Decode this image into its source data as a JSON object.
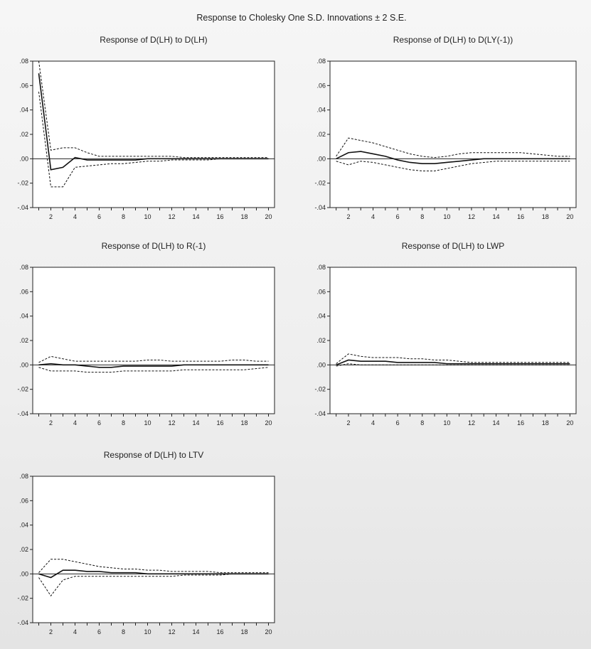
{
  "figure_title": "Response to Cholesky One S.D. Innovations ± 2 S.E.",
  "chart_data": [
    {
      "type": "line",
      "title": "Response of D(LH) to D(LH)",
      "x": [
        1,
        2,
        3,
        4,
        5,
        6,
        7,
        8,
        9,
        10,
        11,
        12,
        13,
        14,
        15,
        16,
        17,
        18,
        19,
        20
      ],
      "xticks": [
        2,
        4,
        6,
        8,
        10,
        12,
        14,
        16,
        18,
        20
      ],
      "ylim": [
        -0.04,
        0.08
      ],
      "yticks": [
        -0.04,
        -0.02,
        0.0,
        0.02,
        0.04,
        0.06,
        0.08
      ],
      "ytick_labels": [
        "-.04",
        "-.02",
        ".00",
        ".02",
        ".04",
        ".06",
        ".08"
      ],
      "series": [
        {
          "role": "response",
          "values": [
            0.07,
            -0.009,
            -0.007,
            0.001,
            -0.001,
            -0.001,
            -0.001,
            -0.001,
            -0.001,
            0,
            0,
            0,
            0,
            0,
            0,
            0,
            0,
            0,
            0,
            0
          ]
        },
        {
          "role": "upper",
          "values": [
            0.08,
            0.007,
            0.009,
            0.009,
            0.005,
            0.002,
            0.002,
            0.002,
            0.002,
            0.002,
            0.002,
            0.002,
            0.001,
            0.001,
            0.001,
            0.001,
            0.001,
            0.001,
            0.001,
            0.001
          ]
        },
        {
          "role": "lower",
          "values": [
            0.055,
            -0.023,
            -0.023,
            -0.007,
            -0.006,
            -0.005,
            -0.004,
            -0.004,
            -0.003,
            -0.002,
            -0.002,
            -0.001,
            -0.001,
            -0.001,
            -0.001,
            0,
            0,
            0,
            0,
            0
          ]
        }
      ]
    },
    {
      "type": "line",
      "title": "Response of D(LH) to D(LY(-1))",
      "x": [
        1,
        2,
        3,
        4,
        5,
        6,
        7,
        8,
        9,
        10,
        11,
        12,
        13,
        14,
        15,
        16,
        17,
        18,
        19,
        20
      ],
      "xticks": [
        2,
        4,
        6,
        8,
        10,
        12,
        14,
        16,
        18,
        20
      ],
      "ylim": [
        -0.04,
        0.08
      ],
      "yticks": [
        -0.04,
        -0.02,
        0.0,
        0.02,
        0.04,
        0.06,
        0.08
      ],
      "ytick_labels": [
        "-.04",
        "-.02",
        ".00",
        ".02",
        ".04",
        ".06",
        ".08"
      ],
      "series": [
        {
          "role": "response",
          "values": [
            0,
            0.005,
            0.006,
            0.004,
            0.002,
            -0.001,
            -0.003,
            -0.004,
            -0.004,
            -0.003,
            -0.002,
            -0.001,
            0,
            0,
            0,
            0,
            0,
            0,
            0,
            0
          ]
        },
        {
          "role": "upper",
          "values": [
            0.002,
            0.017,
            0.015,
            0.013,
            0.01,
            0.007,
            0.004,
            0.002,
            0.001,
            0.002,
            0.004,
            0.005,
            0.005,
            0.005,
            0.005,
            0.005,
            0.004,
            0.003,
            0.002,
            0.002
          ]
        },
        {
          "role": "lower",
          "values": [
            -0.002,
            -0.005,
            -0.002,
            -0.003,
            -0.005,
            -0.007,
            -0.009,
            -0.01,
            -0.01,
            -0.008,
            -0.006,
            -0.004,
            -0.003,
            -0.002,
            -0.002,
            -0.002,
            -0.002,
            -0.002,
            -0.002,
            -0.002
          ]
        }
      ]
    },
    {
      "type": "line",
      "title": "Response of D(LH) to R(-1)",
      "x": [
        1,
        2,
        3,
        4,
        5,
        6,
        7,
        8,
        9,
        10,
        11,
        12,
        13,
        14,
        15,
        16,
        17,
        18,
        19,
        20
      ],
      "xticks": [
        2,
        4,
        6,
        8,
        10,
        12,
        14,
        16,
        18,
        20
      ],
      "ylim": [
        -0.04,
        0.08
      ],
      "yticks": [
        -0.04,
        -0.02,
        0.0,
        0.02,
        0.04,
        0.06,
        0.08
      ],
      "ytick_labels": [
        "-.04",
        "-.02",
        ".00",
        ".02",
        ".04",
        ".06",
        ".08"
      ],
      "series": [
        {
          "role": "response",
          "values": [
            0,
            0.001,
            0,
            0,
            -0.001,
            -0.002,
            -0.002,
            -0.001,
            -0.001,
            -0.001,
            -0.001,
            -0.001,
            0,
            0,
            0,
            0,
            0,
            0,
            0,
            0
          ]
        },
        {
          "role": "upper",
          "values": [
            0.002,
            0.007,
            0.005,
            0.003,
            0.003,
            0.003,
            0.003,
            0.003,
            0.003,
            0.004,
            0.004,
            0.003,
            0.003,
            0.003,
            0.003,
            0.003,
            0.004,
            0.004,
            0.003,
            0.003
          ]
        },
        {
          "role": "lower",
          "values": [
            -0.002,
            -0.005,
            -0.005,
            -0.005,
            -0.006,
            -0.006,
            -0.006,
            -0.005,
            -0.005,
            -0.005,
            -0.005,
            -0.005,
            -0.004,
            -0.004,
            -0.004,
            -0.004,
            -0.004,
            -0.004,
            -0.003,
            -0.002
          ]
        }
      ]
    },
    {
      "type": "line",
      "title": "Response of D(LH) to LWP",
      "x": [
        1,
        2,
        3,
        4,
        5,
        6,
        7,
        8,
        9,
        10,
        11,
        12,
        13,
        14,
        15,
        16,
        17,
        18,
        19,
        20
      ],
      "xticks": [
        2,
        4,
        6,
        8,
        10,
        12,
        14,
        16,
        18,
        20
      ],
      "ylim": [
        -0.04,
        0.08
      ],
      "yticks": [
        -0.04,
        -0.02,
        0.0,
        0.02,
        0.04,
        0.06,
        0.08
      ],
      "ytick_labels": [
        "-.04",
        "-.02",
        ".00",
        ".02",
        ".04",
        ".06",
        ".08"
      ],
      "series": [
        {
          "role": "response",
          "values": [
            0,
            0.004,
            0.003,
            0.003,
            0.003,
            0.002,
            0.002,
            0.002,
            0.002,
            0.001,
            0.001,
            0.001,
            0.001,
            0.001,
            0.001,
            0.001,
            0.001,
            0.001,
            0.001,
            0.001
          ]
        },
        {
          "role": "upper",
          "values": [
            0.001,
            0.009,
            0.007,
            0.006,
            0.006,
            0.006,
            0.005,
            0.005,
            0.004,
            0.004,
            0.003,
            0.002,
            0.002,
            0.002,
            0.002,
            0.002,
            0.002,
            0.002,
            0.002,
            0.002
          ]
        },
        {
          "role": "lower",
          "values": [
            -0.001,
            0.001,
            0,
            0,
            0,
            0,
            0,
            0,
            0,
            0,
            0,
            0,
            0,
            0,
            0,
            0,
            0,
            0,
            0,
            0
          ]
        }
      ]
    },
    {
      "type": "line",
      "title": "Response of D(LH) to LTV",
      "x": [
        1,
        2,
        3,
        4,
        5,
        6,
        7,
        8,
        9,
        10,
        11,
        12,
        13,
        14,
        15,
        16,
        17,
        18,
        19,
        20
      ],
      "xticks": [
        2,
        4,
        6,
        8,
        10,
        12,
        14,
        16,
        18,
        20
      ],
      "ylim": [
        -0.04,
        0.08
      ],
      "yticks": [
        -0.04,
        -0.02,
        0.0,
        0.02,
        0.04,
        0.06,
        0.08
      ],
      "ytick_labels": [
        "-.04",
        "-.02",
        ".00",
        ".02",
        ".04",
        ".06",
        ".08"
      ],
      "series": [
        {
          "role": "response",
          "values": [
            0,
            -0.003,
            0.003,
            0.003,
            0.002,
            0.002,
            0.001,
            0.001,
            0.001,
            0,
            0,
            0,
            0,
            0,
            0,
            0,
            0,
            0,
            0,
            0
          ]
        },
        {
          "role": "upper",
          "values": [
            0.001,
            0.012,
            0.012,
            0.01,
            0.008,
            0.006,
            0.005,
            0.004,
            0.004,
            0.003,
            0.003,
            0.002,
            0.002,
            0.002,
            0.002,
            0.001,
            0.001,
            0.001,
            0.001,
            0.001
          ]
        },
        {
          "role": "lower",
          "values": [
            -0.003,
            -0.018,
            -0.005,
            -0.002,
            -0.002,
            -0.002,
            -0.002,
            -0.002,
            -0.002,
            -0.002,
            -0.002,
            -0.002,
            -0.001,
            -0.001,
            -0.001,
            -0.001,
            0,
            0,
            0,
            0
          ]
        }
      ]
    }
  ]
}
